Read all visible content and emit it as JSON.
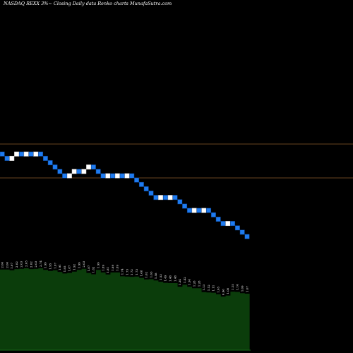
{
  "header": {
    "title": "NASDAQ REXX  3%~  Closing Daily data  Renko  charts MunafaSutra.com"
  },
  "colors": {
    "background": "#000000",
    "up_brick": "#ffffff",
    "down_brick": "#1e7bf0",
    "down_brick_border": "#0a3f8a",
    "resistance_line": "#8b5a2b",
    "volume_fill": "#0b3d0b",
    "volume_label": "#ffffff"
  },
  "chart_data": {
    "type": "renko",
    "grid": false,
    "bricks": [
      "down",
      "down",
      "up",
      "up",
      "down",
      "up",
      "down",
      "up",
      "down",
      "down",
      "down",
      "down",
      "down",
      "down",
      "up",
      "up",
      "down",
      "up",
      "up",
      "down",
      "down",
      "down",
      "up",
      "down",
      "up",
      "down",
      "up",
      "down",
      "down",
      "down",
      "down",
      "down",
      "down",
      "up",
      "down",
      "up",
      "down",
      "down",
      "down",
      "down",
      "up",
      "down",
      "up",
      "down",
      "down",
      "down",
      "down",
      "up",
      "down",
      "down",
      "down",
      "down"
    ],
    "horizontal_lines": 2,
    "volume_labels": [
      "2.00",
      "2.00",
      "1.97",
      "2.02",
      "2.03",
      "2.05",
      "2.02",
      "2.03",
      "2.74",
      "1.99",
      "1.95",
      "1.97",
      "1.91",
      "1.85",
      "1.87",
      "1.92",
      "1.99",
      "2.03",
      "1.87",
      "1.82",
      "1.99",
      "1.89",
      "1.81",
      "1.89",
      "1.89",
      "1.74",
      "1.73",
      "1.72",
      "1.73",
      "1.68",
      "1.62",
      "1.63",
      "1.58",
      "1.53",
      "1.49",
      "1.48",
      "1.48",
      "1.34",
      "1.42",
      "1.34",
      "1.28",
      "1.28",
      "1.13",
      "1.12",
      "1.11",
      "1.05",
      "0.96",
      "1.00",
      "1.15",
      "1.14",
      "1.09",
      "1.07"
    ]
  }
}
